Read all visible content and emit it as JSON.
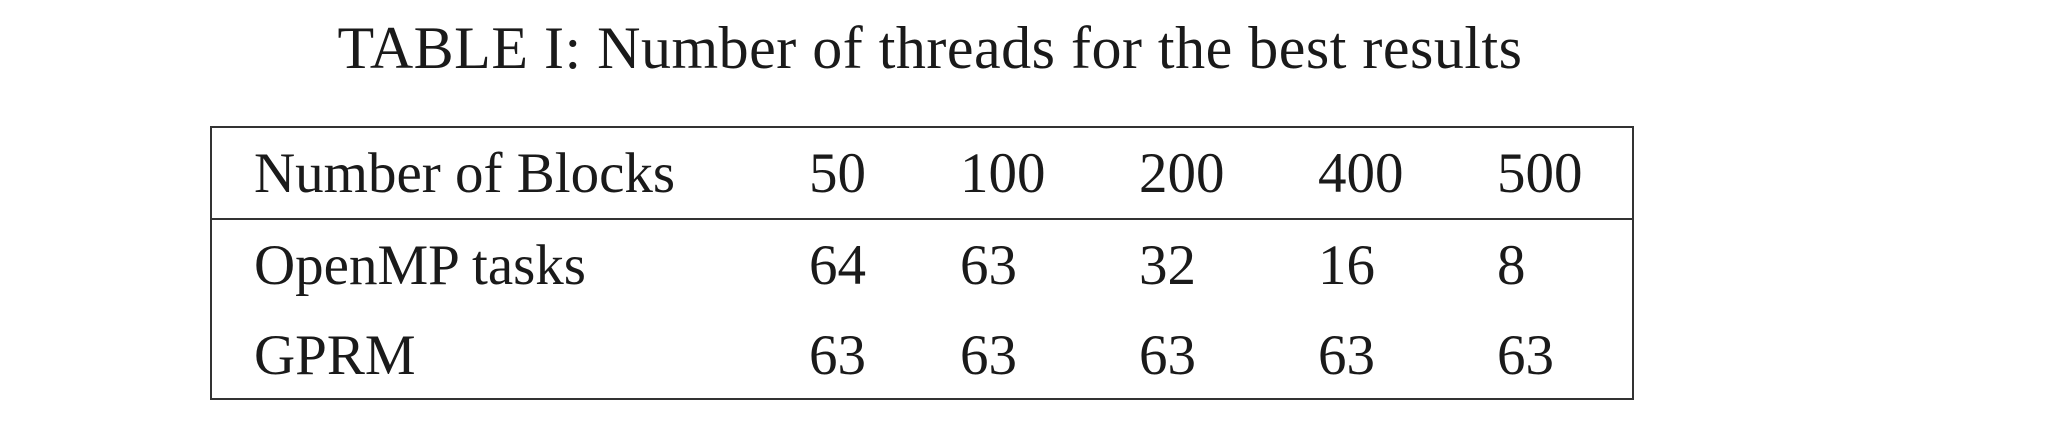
{
  "caption": "TABLE I: Number of threads for the best results",
  "table": {
    "header": [
      "Number of Blocks",
      "50",
      "100",
      "200",
      "400",
      "500"
    ],
    "rows": [
      [
        "OpenMP tasks",
        "64",
        "63",
        "32",
        "16",
        "8"
      ],
      [
        "GPRM",
        "63",
        "63",
        "63",
        "63",
        "63"
      ]
    ]
  }
}
